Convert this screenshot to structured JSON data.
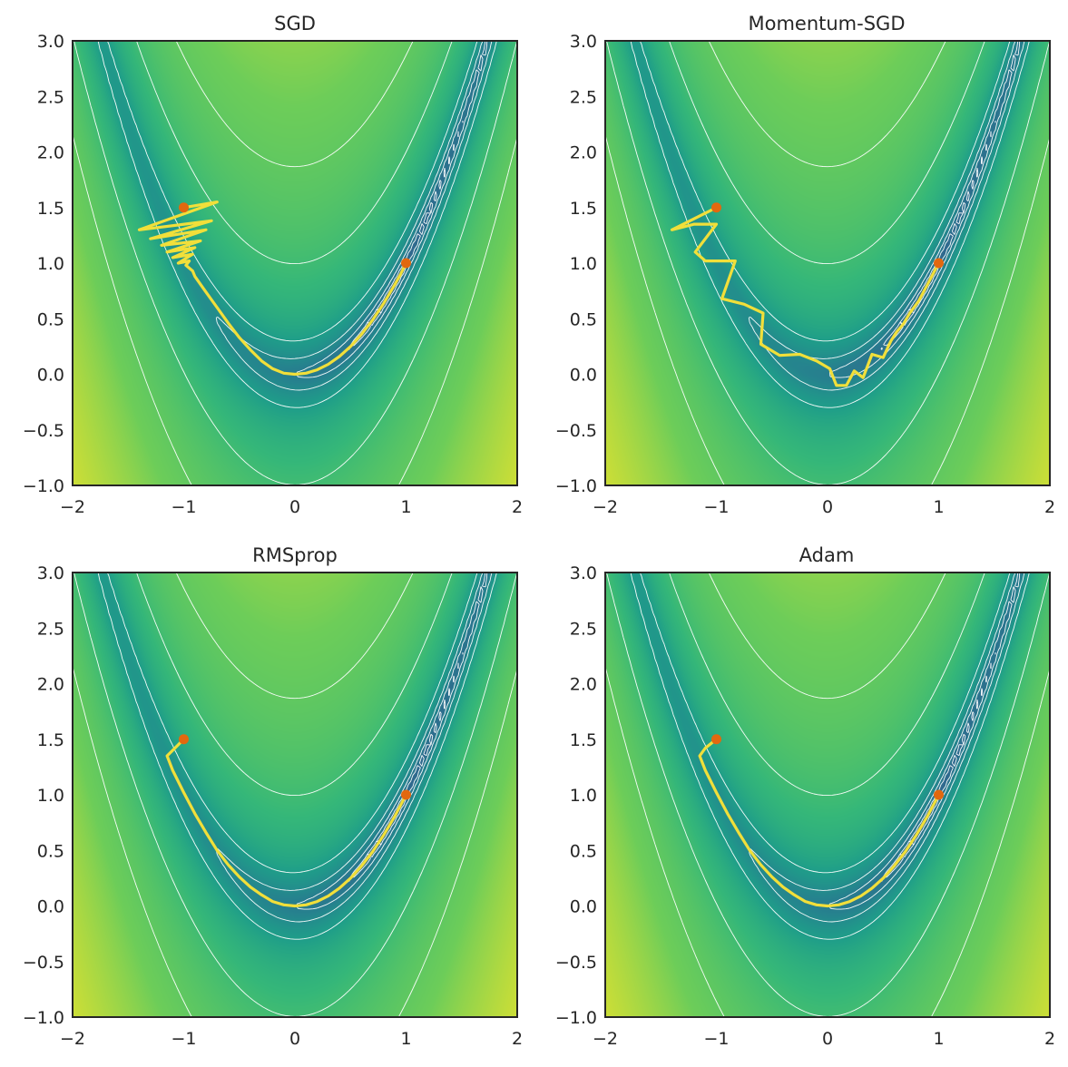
{
  "chart_data": [
    {
      "type": "contour",
      "title": "SGD",
      "surface": "(1-x)^2+100*(y-x^2)^2",
      "colormap": "viridis",
      "contour_levels": [
        0.3,
        1,
        3,
        10,
        100,
        350
      ],
      "xlim": [
        -2,
        2
      ],
      "ylim": [
        -1,
        3
      ],
      "xticks": [
        -2,
        -1,
        0,
        1,
        2
      ],
      "yticks": [
        -1.0,
        -0.5,
        0.0,
        0.5,
        1.0,
        1.5,
        2.0,
        2.5,
        3.0
      ],
      "start": [
        -1,
        1.5
      ],
      "minimum": [
        1,
        1
      ],
      "path_color": "#f1df3a",
      "path": [
        [
          -1.0,
          1.5
        ],
        [
          -0.7,
          1.55
        ],
        [
          -1.4,
          1.3
        ],
        [
          -0.75,
          1.38
        ],
        [
          -1.3,
          1.22
        ],
        [
          -0.8,
          1.3
        ],
        [
          -1.2,
          1.16
        ],
        [
          -0.85,
          1.2
        ],
        [
          -1.15,
          1.1
        ],
        [
          -0.9,
          1.14
        ],
        [
          -1.1,
          1.05
        ],
        [
          -0.92,
          1.08
        ],
        [
          -1.05,
          1.0
        ],
        [
          -0.95,
          1.02
        ],
        [
          -0.98,
          0.98
        ],
        [
          -0.92,
          0.93
        ],
        [
          -0.9,
          0.88
        ],
        [
          -0.8,
          0.74
        ],
        [
          -0.7,
          0.6
        ],
        [
          -0.6,
          0.46
        ],
        [
          -0.5,
          0.33
        ],
        [
          -0.4,
          0.22
        ],
        [
          -0.3,
          0.12
        ],
        [
          -0.2,
          0.05
        ],
        [
          -0.1,
          0.01
        ],
        [
          0.0,
          0.0
        ],
        [
          0.1,
          0.01
        ],
        [
          0.2,
          0.04
        ],
        [
          0.3,
          0.09
        ],
        [
          0.4,
          0.16
        ],
        [
          0.5,
          0.25
        ],
        [
          0.6,
          0.36
        ],
        [
          0.7,
          0.49
        ],
        [
          0.8,
          0.64
        ],
        [
          0.9,
          0.81
        ],
        [
          0.95,
          0.9
        ],
        [
          1.0,
          1.0
        ]
      ]
    },
    {
      "type": "contour",
      "title": "Momentum-SGD",
      "surface": "(1-x)^2+100*(y-x^2)^2",
      "colormap": "viridis",
      "contour_levels": [
        0.3,
        1,
        3,
        10,
        100,
        350
      ],
      "xlim": [
        -2,
        2
      ],
      "ylim": [
        -1,
        3
      ],
      "xticks": [
        -2,
        -1,
        0,
        1,
        2
      ],
      "yticks": [
        -1.0,
        -0.5,
        0.0,
        0.5,
        1.0,
        1.5,
        2.0,
        2.5,
        3.0
      ],
      "start": [
        -1,
        1.5
      ],
      "minimum": [
        1,
        1
      ],
      "path_color": "#f1df3a",
      "path": [
        [
          -1.0,
          1.5
        ],
        [
          -1.4,
          1.3
        ],
        [
          -1.2,
          1.35
        ],
        [
          -1.0,
          1.35
        ],
        [
          -1.19,
          1.1
        ],
        [
          -1.1,
          1.02
        ],
        [
          -0.83,
          1.02
        ],
        [
          -0.95,
          0.68
        ],
        [
          -0.75,
          0.63
        ],
        [
          -0.58,
          0.55
        ],
        [
          -0.6,
          0.27
        ],
        [
          -0.43,
          0.17
        ],
        [
          -0.25,
          0.18
        ],
        [
          -0.1,
          0.12
        ],
        [
          0.02,
          0.05
        ],
        [
          0.08,
          -0.1
        ],
        [
          0.17,
          -0.1
        ],
        [
          0.24,
          0.03
        ],
        [
          0.32,
          -0.03
        ],
        [
          0.4,
          0.18
        ],
        [
          0.5,
          0.15
        ],
        [
          0.57,
          0.3
        ],
        [
          0.62,
          0.38
        ],
        [
          0.68,
          0.45
        ],
        [
          0.74,
          0.55
        ],
        [
          0.82,
          0.66
        ],
        [
          0.9,
          0.81
        ],
        [
          1.0,
          1.0
        ]
      ]
    },
    {
      "type": "contour",
      "title": "RMSprop",
      "surface": "(1-x)^2+100*(y-x^2)^2",
      "colormap": "viridis",
      "contour_levels": [
        0.3,
        1,
        3,
        10,
        100,
        350
      ],
      "xlim": [
        -2,
        2
      ],
      "ylim": [
        -1,
        3
      ],
      "xticks": [
        -2,
        -1,
        0,
        1,
        2
      ],
      "yticks": [
        -1.0,
        -0.5,
        0.0,
        0.5,
        1.0,
        1.5,
        2.0,
        2.5,
        3.0
      ],
      "start": [
        -1,
        1.5
      ],
      "minimum": [
        1,
        1
      ],
      "path_color": "#f1df3a",
      "path": [
        [
          -1.0,
          1.5
        ],
        [
          -1.1,
          1.4
        ],
        [
          -1.15,
          1.35
        ],
        [
          -1.1,
          1.22
        ],
        [
          -1.0,
          1.02
        ],
        [
          -0.9,
          0.83
        ],
        [
          -0.8,
          0.66
        ],
        [
          -0.7,
          0.5
        ],
        [
          -0.6,
          0.37
        ],
        [
          -0.5,
          0.26
        ],
        [
          -0.4,
          0.17
        ],
        [
          -0.3,
          0.1
        ],
        [
          -0.2,
          0.04
        ],
        [
          -0.1,
          0.01
        ],
        [
          0.0,
          0.0
        ],
        [
          0.1,
          0.01
        ],
        [
          0.2,
          0.04
        ],
        [
          0.3,
          0.09
        ],
        [
          0.4,
          0.16
        ],
        [
          0.5,
          0.25
        ],
        [
          0.6,
          0.36
        ],
        [
          0.7,
          0.49
        ],
        [
          0.8,
          0.64
        ],
        [
          0.9,
          0.81
        ],
        [
          1.0,
          1.0
        ]
      ]
    },
    {
      "type": "contour",
      "title": "Adam",
      "surface": "(1-x)^2+100*(y-x^2)^2",
      "colormap": "viridis",
      "contour_levels": [
        0.3,
        1,
        3,
        10,
        100,
        350
      ],
      "xlim": [
        -2,
        2
      ],
      "ylim": [
        -1,
        3
      ],
      "xticks": [
        -2,
        -1,
        0,
        1,
        2
      ],
      "yticks": [
        -1.0,
        -0.5,
        0.0,
        0.5,
        1.0,
        1.5,
        2.0,
        2.5,
        3.0
      ],
      "start": [
        -1,
        1.5
      ],
      "minimum": [
        1,
        1
      ],
      "path_color": "#f1df3a",
      "path": [
        [
          -1.0,
          1.5
        ],
        [
          -1.1,
          1.42
        ],
        [
          -1.15,
          1.35
        ],
        [
          -1.1,
          1.22
        ],
        [
          -1.0,
          1.02
        ],
        [
          -0.9,
          0.83
        ],
        [
          -0.8,
          0.66
        ],
        [
          -0.7,
          0.5
        ],
        [
          -0.6,
          0.37
        ],
        [
          -0.5,
          0.26
        ],
        [
          -0.4,
          0.17
        ],
        [
          -0.3,
          0.1
        ],
        [
          -0.2,
          0.04
        ],
        [
          -0.1,
          0.01
        ],
        [
          0.0,
          0.0
        ],
        [
          0.1,
          0.01
        ],
        [
          0.2,
          0.04
        ],
        [
          0.3,
          0.09
        ],
        [
          0.4,
          0.16
        ],
        [
          0.5,
          0.25
        ],
        [
          0.6,
          0.36
        ],
        [
          0.7,
          0.49
        ],
        [
          0.8,
          0.64
        ],
        [
          0.9,
          0.81
        ],
        [
          1.0,
          1.0
        ]
      ]
    }
  ]
}
